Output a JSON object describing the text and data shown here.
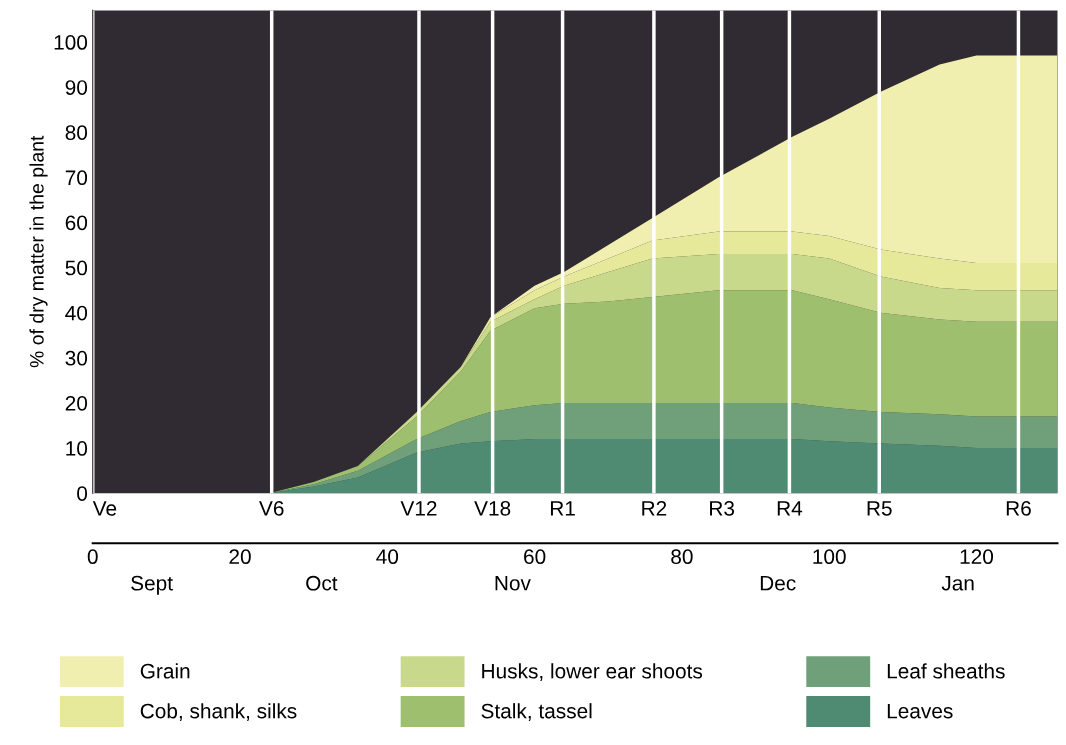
{
  "chart_data": {
    "type": "area",
    "stacked": true,
    "ylabel": "% of dry matter in the plant",
    "x": [
      24,
      30,
      36,
      44,
      50,
      54,
      60,
      64,
      70,
      76,
      85,
      95,
      100,
      107,
      115,
      120,
      126,
      131
    ],
    "series": [
      {
        "name": "Leaves",
        "color": "#4f8a72",
        "values": [
          0,
          1.5,
          3.5,
          9,
          11,
          11.5,
          12,
          12,
          12,
          12,
          12,
          12,
          11.5,
          11,
          10.5,
          10,
          10,
          10
        ]
      },
      {
        "name": "Leaf sheaths",
        "color": "#6fa07a",
        "values": [
          0,
          0.5,
          1.5,
          3,
          5,
          6.5,
          7.5,
          8,
          8,
          8,
          8,
          8,
          7.5,
          7,
          7,
          7,
          7,
          7
        ]
      },
      {
        "name": "Stalk, tassel",
        "color": "#9dbf6e",
        "values": [
          0,
          0.5,
          1,
          5,
          11,
          18,
          21.5,
          22,
          22.5,
          23.5,
          25,
          25,
          24,
          22,
          21,
          21,
          21,
          21
        ]
      },
      {
        "name": "Husks, lower ear shoots",
        "color": "#c8d98c",
        "values": [
          0,
          0,
          0,
          1,
          1,
          2,
          2,
          4,
          6.5,
          8.5,
          8,
          8,
          9,
          8,
          7,
          7,
          7,
          7
        ]
      },
      {
        "name": "Cob, shank, silks",
        "color": "#e6e89a",
        "values": [
          0,
          0,
          0,
          0,
          0,
          1,
          2,
          2,
          3,
          4,
          5,
          5,
          5,
          6,
          6.5,
          6,
          6,
          6
        ]
      },
      {
        "name": "Grain",
        "color": "#f1efb0",
        "values": [
          0,
          0,
          0,
          0,
          0,
          0,
          1,
          1,
          3,
          5,
          12,
          21,
          26,
          35,
          43,
          46,
          46,
          46
        ]
      }
    ],
    "xlim": [
      0,
      131
    ],
    "ylim": [
      0,
      107
    ],
    "xticks": [
      0,
      20,
      40,
      60,
      80,
      100,
      120
    ],
    "yticks": [
      0,
      10,
      20,
      30,
      40,
      50,
      60,
      70,
      80,
      90,
      100
    ],
    "annotations": [
      "Sept",
      "Oct",
      "Nov",
      "Dec",
      "Jan"
    ],
    "ref_lines": [
      {
        "axis": "x",
        "value": 0,
        "label": "Ve",
        "color": "#ffffff"
      },
      {
        "axis": "x",
        "value": 24.3,
        "label": "V6",
        "color": "#ffffff"
      },
      {
        "axis": "x",
        "value": 44.3,
        "label": "V12",
        "color": "#ffffff"
      },
      {
        "axis": "x",
        "value": 54.3,
        "label": "V18",
        "color": "#ffffff"
      },
      {
        "axis": "x",
        "value": 63.8,
        "label": "R1",
        "color": "#ffffff"
      },
      {
        "axis": "x",
        "value": 76.2,
        "label": "R2",
        "color": "#ffffff"
      },
      {
        "axis": "x",
        "value": 85.4,
        "label": "R3",
        "color": "#ffffff"
      },
      {
        "axis": "x",
        "value": 94.6,
        "label": "R4",
        "color": "#ffffff"
      },
      {
        "axis": "x",
        "value": 106.8,
        "label": "R5",
        "color": "#ffffff"
      },
      {
        "axis": "x",
        "value": 125.7,
        "label": "R6",
        "color": "#ffffff"
      }
    ],
    "grid": false,
    "legend": "bottom"
  }
}
